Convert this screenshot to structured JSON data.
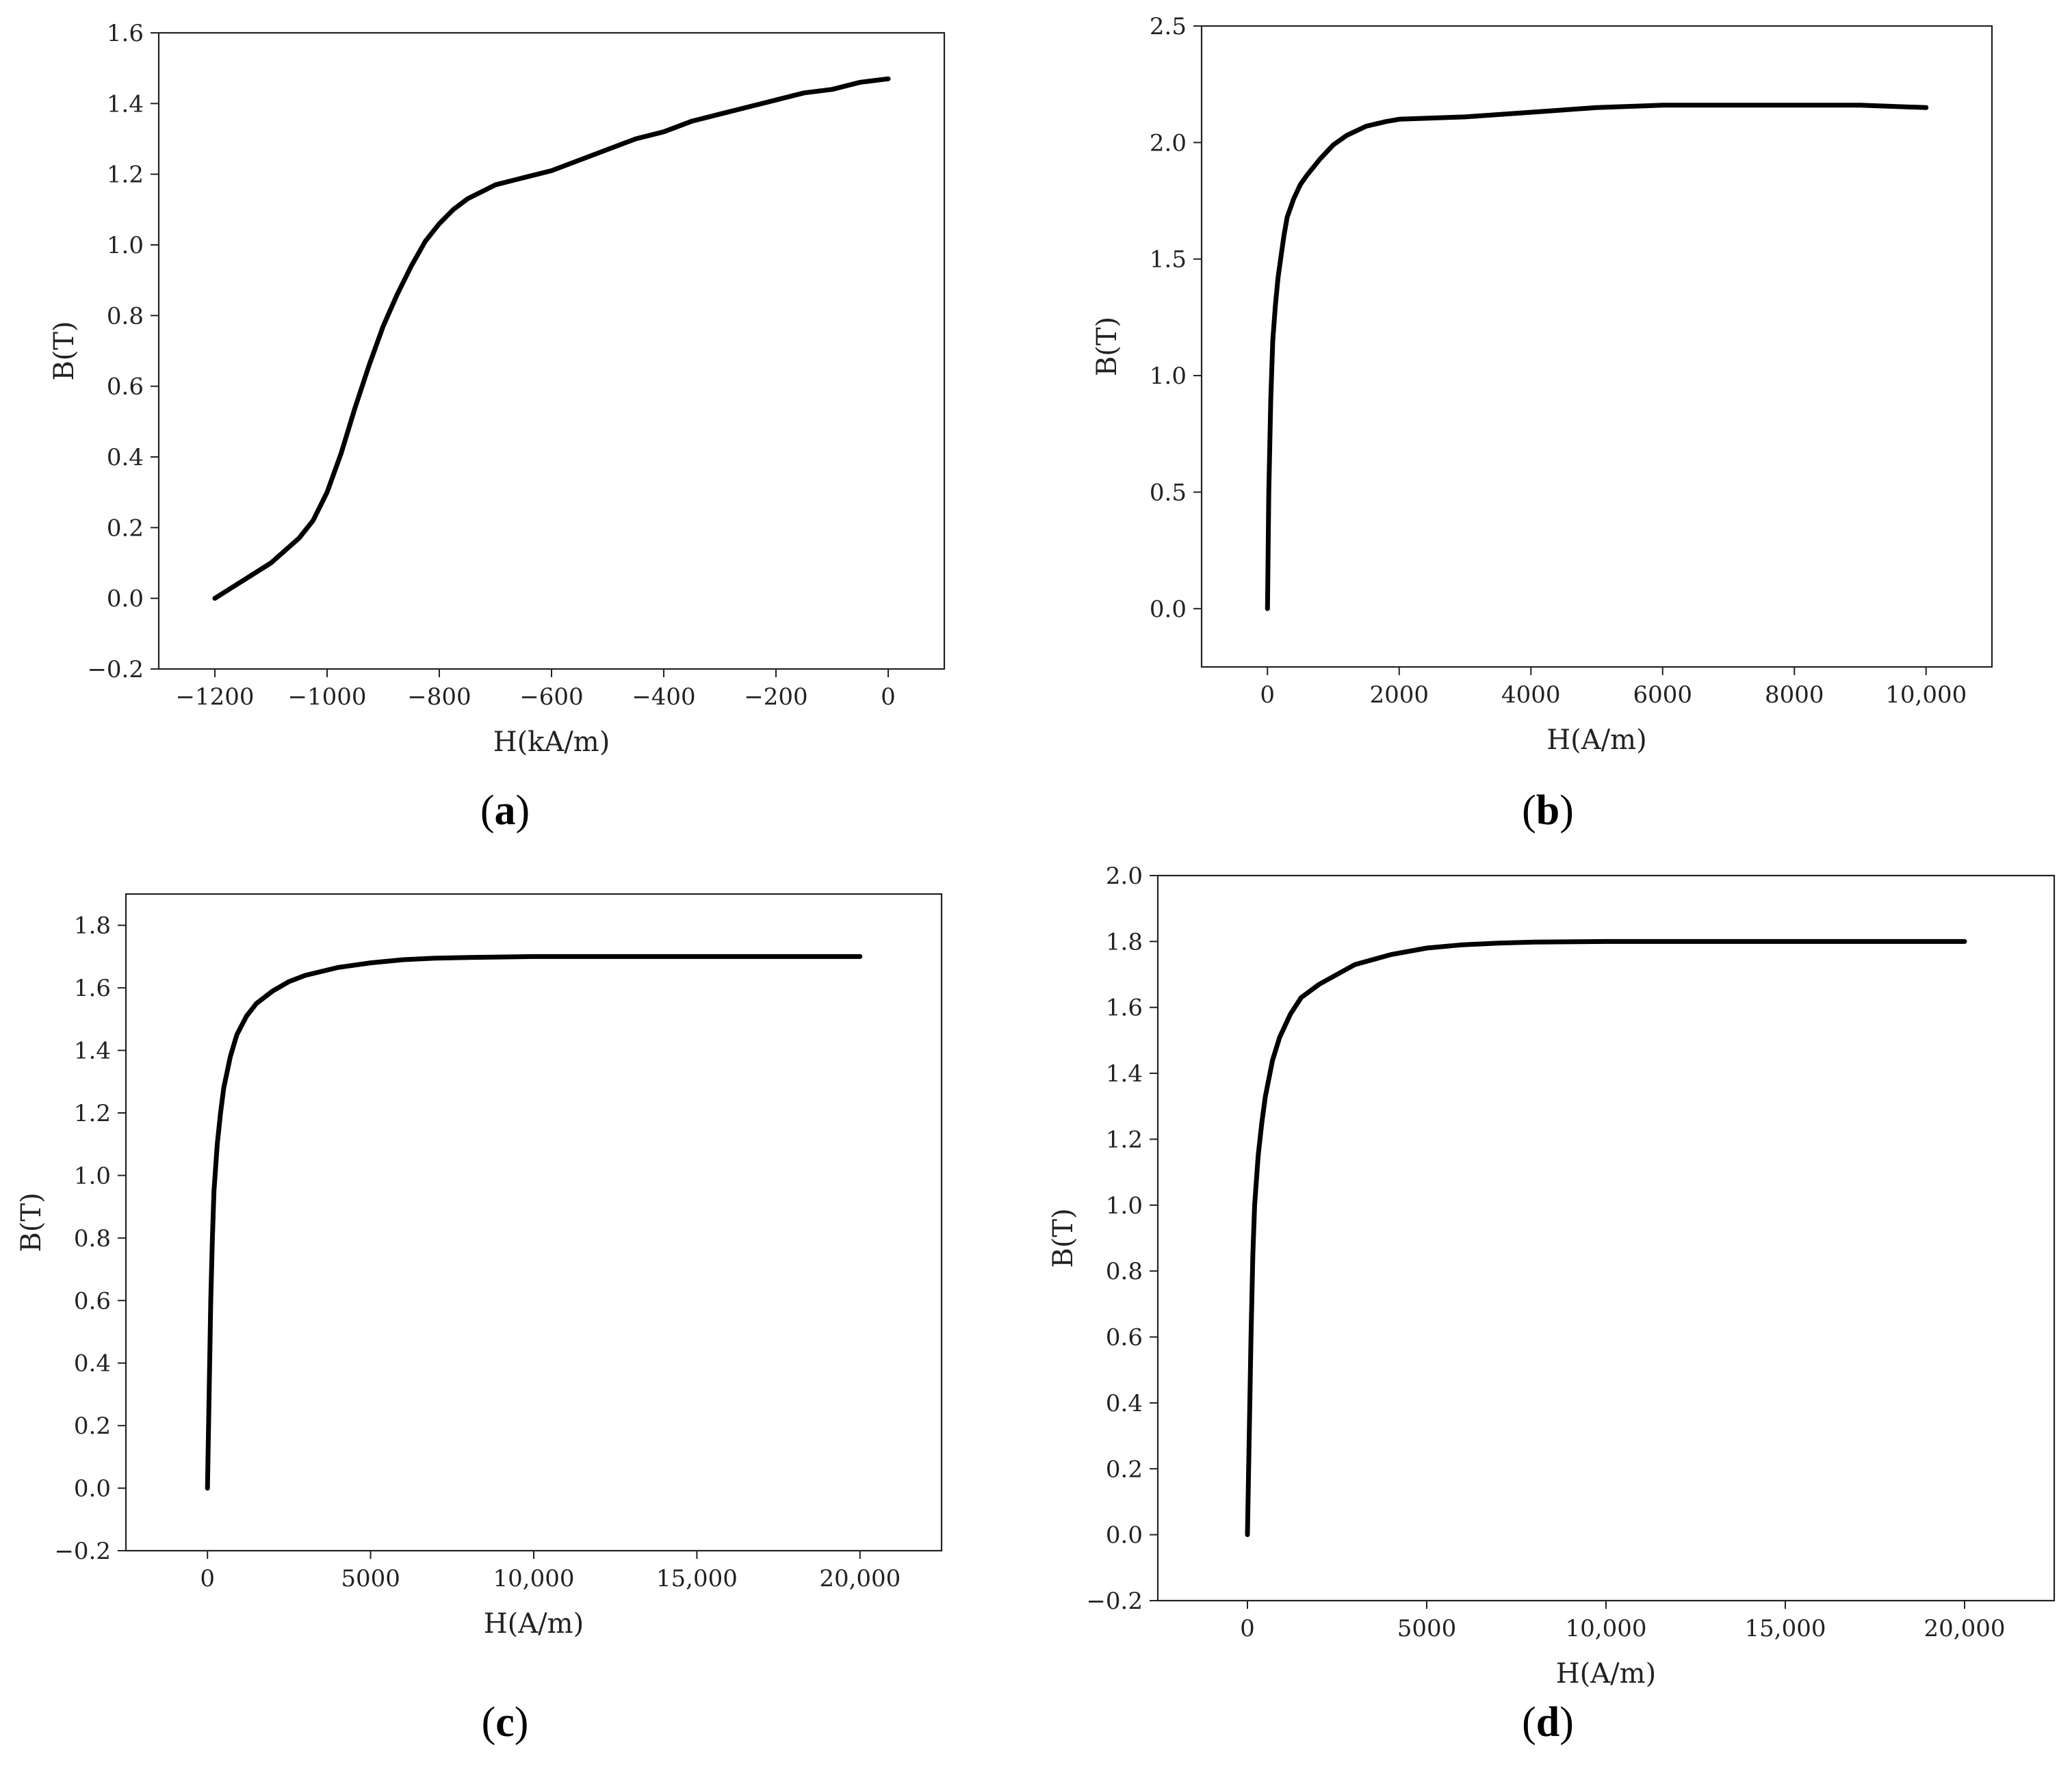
{
  "chart_data": [
    {
      "type": "line",
      "panel_label": "a",
      "xlabel": "H(kA/m)",
      "ylabel": "B(T)",
      "xlim": [
        -1300,
        100
      ],
      "ylim": [
        -0.2,
        1.6
      ],
      "xticks": [
        -1200,
        -1000,
        -800,
        -600,
        -400,
        -200,
        0
      ],
      "xtick_labels": [
        "−1200",
        "−1000",
        "−800",
        "−600",
        "−400",
        "−200",
        "0"
      ],
      "yticks": [
        -0.2,
        0.0,
        0.2,
        0.4,
        0.6,
        0.8,
        1.0,
        1.2,
        1.4,
        1.6
      ],
      "ytick_labels": [
        "−0.2",
        "0.0",
        "0.2",
        "0.4",
        "0.6",
        "0.8",
        "1.0",
        "1.2",
        "1.4",
        "1.6"
      ],
      "grid": false,
      "x": [
        -1200,
        -1150,
        -1100,
        -1050,
        -1025,
        -1000,
        -975,
        -950,
        -925,
        -900,
        -875,
        -850,
        -825,
        -800,
        -775,
        -750,
        -725,
        -700,
        -675,
        -650,
        -600,
        -550,
        -500,
        -450,
        -400,
        -350,
        -300,
        -250,
        -200,
        -150,
        -100,
        -50,
        0
      ],
      "y": [
        0.0,
        0.05,
        0.1,
        0.17,
        0.22,
        0.3,
        0.41,
        0.54,
        0.66,
        0.77,
        0.86,
        0.94,
        1.01,
        1.06,
        1.1,
        1.13,
        1.15,
        1.17,
        1.18,
        1.19,
        1.21,
        1.24,
        1.27,
        1.3,
        1.32,
        1.35,
        1.37,
        1.39,
        1.41,
        1.43,
        1.44,
        1.46,
        1.47
      ]
    },
    {
      "type": "line",
      "panel_label": "b",
      "xlabel": "H(A/m)",
      "ylabel": "B(T)",
      "xlim": [
        -1000,
        11000
      ],
      "ylim": [
        -0.25,
        2.5
      ],
      "xticks": [
        0,
        2000,
        4000,
        6000,
        8000,
        10000
      ],
      "xtick_labels": [
        "0",
        "2000",
        "4000",
        "6000",
        "8000",
        "10,000"
      ],
      "yticks": [
        0.0,
        0.5,
        1.0,
        1.5,
        2.0,
        2.5
      ],
      "ytick_labels": [
        "0.0",
        "0.5",
        "1.0",
        "1.5",
        "2.0",
        "2.5"
      ],
      "grid": false,
      "x": [
        0,
        20,
        50,
        80,
        120,
        160,
        200,
        250,
        300,
        400,
        500,
        600,
        800,
        1000,
        1200,
        1500,
        1800,
        2000,
        3000,
        4000,
        5000,
        6000,
        7000,
        8000,
        9000,
        10000
      ],
      "y": [
        0.0,
        0.5,
        0.9,
        1.15,
        1.3,
        1.42,
        1.5,
        1.6,
        1.68,
        1.76,
        1.82,
        1.86,
        1.93,
        1.99,
        2.03,
        2.07,
        2.09,
        2.1,
        2.11,
        2.13,
        2.15,
        2.16,
        2.16,
        2.16,
        2.16,
        2.15
      ]
    },
    {
      "type": "line",
      "panel_label": "c",
      "xlabel": "H(A/m)",
      "ylabel": "B(T)",
      "xlim": [
        -2500,
        22500
      ],
      "ylim": [
        -0.2,
        1.9
      ],
      "xticks": [
        0,
        5000,
        10000,
        15000,
        20000
      ],
      "xtick_labels": [
        "0",
        "5000",
        "10,000",
        "15,000",
        "20,000"
      ],
      "yticks": [
        -0.2,
        0.0,
        0.2,
        0.4,
        0.6,
        0.8,
        1.0,
        1.2,
        1.4,
        1.6,
        1.8
      ],
      "ytick_labels": [
        "−0.2",
        "0.0",
        "0.2",
        "0.4",
        "0.6",
        "0.8",
        "1.0",
        "1.2",
        "1.4",
        "1.6",
        "1.8"
      ],
      "grid": false,
      "x": [
        0,
        50,
        100,
        150,
        200,
        300,
        400,
        500,
        700,
        900,
        1200,
        1500,
        2000,
        2500,
        3000,
        4000,
        5000,
        6000,
        7000,
        8000,
        10000,
        15000,
        20000
      ],
      "y": [
        0.0,
        0.3,
        0.6,
        0.8,
        0.95,
        1.1,
        1.2,
        1.28,
        1.38,
        1.45,
        1.51,
        1.55,
        1.59,
        1.62,
        1.64,
        1.665,
        1.68,
        1.69,
        1.695,
        1.697,
        1.7,
        1.7,
        1.7
      ]
    },
    {
      "type": "line",
      "panel_label": "d",
      "xlabel": "H(A/m)",
      "ylabel": "B(T)",
      "xlim": [
        -2500,
        22500
      ],
      "ylim": [
        -0.2,
        2.0
      ],
      "xticks": [
        0,
        5000,
        10000,
        15000,
        20000
      ],
      "xtick_labels": [
        "0",
        "5000",
        "10,000",
        "15,000",
        "20,000"
      ],
      "yticks": [
        -0.2,
        0.0,
        0.2,
        0.4,
        0.6,
        0.8,
        1.0,
        1.2,
        1.4,
        1.6,
        1.8,
        2.0
      ],
      "ytick_labels": [
        "−0.2",
        "0.0",
        "0.2",
        "0.4",
        "0.6",
        "0.8",
        "1.0",
        "1.2",
        "1.4",
        "1.6",
        "1.8",
        "2.0"
      ],
      "grid": false,
      "x": [
        0,
        50,
        100,
        150,
        200,
        300,
        400,
        500,
        700,
        900,
        1200,
        1500,
        2000,
        2500,
        3000,
        4000,
        5000,
        6000,
        7000,
        8000,
        10000,
        15000,
        20000
      ],
      "y": [
        0.0,
        0.3,
        0.6,
        0.85,
        1.0,
        1.15,
        1.25,
        1.33,
        1.44,
        1.51,
        1.58,
        1.63,
        1.67,
        1.7,
        1.73,
        1.76,
        1.78,
        1.79,
        1.795,
        1.798,
        1.8,
        1.8,
        1.8
      ]
    }
  ]
}
